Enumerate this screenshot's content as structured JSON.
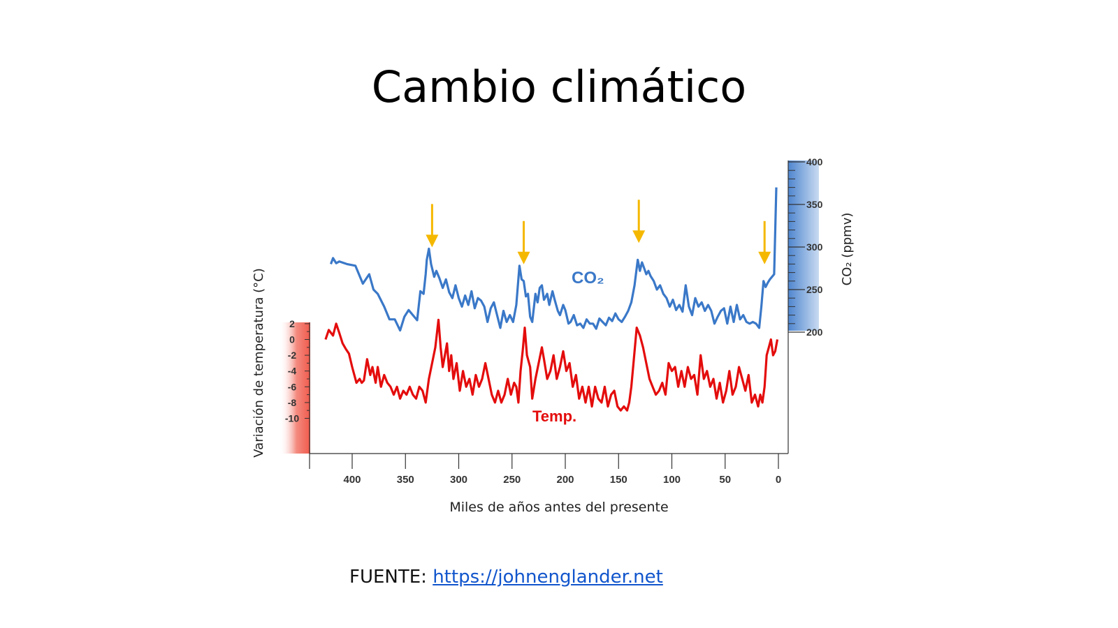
{
  "slide": {
    "title": "Cambio climático",
    "source_label": "FUENTE:",
    "source_link": "https://johnenglander.net"
  },
  "colors": {
    "co2": "#3a78c8",
    "temp": "#e40c0c",
    "arrow": "#f5b800",
    "co2_axis_bar": "#7aa6dc",
    "temp_axis_bar": "#f26a5e"
  },
  "chart_data": {
    "type": "line",
    "xlabel": "Miles de años antes del presente",
    "ylabel_left": "Variación de temperatura (°C)",
    "ylabel_right": "CO₂ (ppmv)",
    "x_ticks": [
      400,
      350,
      300,
      250,
      200,
      150,
      100,
      50,
      0
    ],
    "xlim": [
      440,
      0
    ],
    "y_left_ticks": [
      2,
      0,
      -2,
      -4,
      -6,
      -8,
      -10
    ],
    "y_left_tick_labels": [
      "2",
      "0",
      "-2",
      "-4",
      "-6",
      "-8",
      "-10"
    ],
    "y_right_ticks": [
      400,
      350,
      300,
      250,
      200
    ],
    "series": [
      {
        "name": "CO2",
        "axis": "right",
        "x": [
          420,
          418,
          415,
          412,
          405,
          397,
          390,
          384,
          380,
          376,
          370,
          365,
          360,
          355,
          351,
          347,
          343,
          339,
          336,
          333,
          331,
          330,
          328,
          326,
          323,
          321,
          318,
          315,
          312,
          309,
          306,
          303,
          300,
          297,
          294,
          291,
          288,
          285,
          282,
          279,
          276,
          273,
          270,
          267,
          264,
          261,
          258,
          255,
          252,
          249,
          246,
          243,
          241,
          239,
          237,
          235,
          233,
          231,
          228,
          226,
          224,
          222,
          220,
          217,
          215,
          212,
          210,
          207,
          205,
          202,
          200,
          197,
          195,
          192,
          189,
          186,
          183,
          180,
          177,
          174,
          171,
          168,
          165,
          162,
          159,
          156,
          153,
          150,
          147,
          144,
          141,
          138,
          135,
          132,
          130,
          128,
          126,
          124,
          122,
          120,
          117,
          114,
          111,
          108,
          105,
          102,
          99,
          96,
          93,
          90,
          87,
          84,
          81,
          78,
          75,
          72,
          69,
          66,
          63,
          60,
          57,
          54,
          51,
          48,
          45,
          42,
          39,
          36,
          33,
          30,
          27,
          24,
          21,
          18,
          16,
          14,
          12,
          10,
          8,
          6,
          4,
          2
        ],
        "values": [
          280,
          287,
          281,
          283,
          280,
          278,
          257,
          268,
          250,
          245,
          230,
          215,
          215,
          202,
          218,
          226,
          220,
          214,
          248,
          245,
          268,
          285,
          298,
          280,
          265,
          272,
          263,
          252,
          262,
          247,
          240,
          255,
          240,
          230,
          243,
          232,
          248,
          228,
          240,
          237,
          230,
          212,
          228,
          235,
          220,
          205,
          225,
          212,
          220,
          212,
          232,
          278,
          262,
          260,
          242,
          245,
          218,
          212,
          245,
          235,
          252,
          255,
          238,
          245,
          232,
          248,
          238,
          225,
          220,
          232,
          226,
          210,
          212,
          220,
          208,
          210,
          205,
          215,
          210,
          210,
          204,
          216,
          212,
          208,
          217,
          213,
          222,
          215,
          212,
          218,
          225,
          235,
          255,
          285,
          272,
          282,
          275,
          268,
          272,
          266,
          260,
          250,
          255,
          245,
          240,
          230,
          238,
          226,
          232,
          224,
          255,
          230,
          220,
          240,
          230,
          235,
          225,
          232,
          225,
          210,
          218,
          225,
          228,
          210,
          230,
          212,
          232,
          215,
          220,
          212,
          210,
          212,
          210,
          205,
          230,
          260,
          253,
          258,
          262,
          265,
          268,
          370
        ]
      },
      {
        "name": "Temp.",
        "axis": "left",
        "x": [
          425,
          422,
          418,
          415,
          412,
          409,
          406,
          403,
          400,
          398,
          396,
          393,
          391,
          389,
          386,
          383,
          381,
          378,
          376,
          373,
          370,
          367,
          364,
          361,
          358,
          355,
          352,
          349,
          346,
          343,
          340,
          337,
          334,
          331,
          328,
          325,
          322,
          319,
          317,
          315,
          313,
          311,
          309,
          307,
          305,
          302,
          299,
          296,
          293,
          290,
          287,
          284,
          281,
          278,
          275,
          272,
          269,
          266,
          263,
          260,
          257,
          254,
          251,
          248,
          246,
          244,
          242,
          240,
          238,
          236,
          233,
          231,
          228,
          225,
          222,
          220,
          217,
          214,
          211,
          208,
          205,
          202,
          199,
          196,
          193,
          190,
          187,
          184,
          181,
          178,
          175,
          172,
          169,
          166,
          163,
          160,
          157,
          154,
          151,
          148,
          145,
          142,
          140,
          138,
          136,
          133,
          130,
          127,
          124,
          121,
          118,
          115,
          112,
          109,
          106,
          103,
          100,
          97,
          94,
          91,
          88,
          85,
          82,
          79,
          76,
          73,
          70,
          67,
          64,
          61,
          58,
          55,
          52,
          49,
          46,
          43,
          40,
          37,
          34,
          31,
          28,
          25,
          22,
          19,
          17,
          15,
          13,
          11,
          9,
          7,
          5,
          3,
          1
        ],
        "values": [
          0,
          1.2,
          0.5,
          2,
          0.8,
          -0.5,
          -1.2,
          -1.8,
          -3.5,
          -4.5,
          -5.5,
          -5,
          -5.5,
          -5.2,
          -2.5,
          -4.5,
          -3.5,
          -5.5,
          -3.5,
          -6,
          -4.5,
          -5.5,
          -6,
          -7,
          -6,
          -7.5,
          -6.5,
          -7,
          -6,
          -7,
          -7.5,
          -6,
          -6.5,
          -8,
          -5,
          -3,
          -1,
          2.5,
          -1,
          -3.5,
          -2,
          -0.5,
          -4,
          -2,
          -5,
          -3,
          -6.5,
          -4,
          -6,
          -5,
          -7,
          -4.5,
          -6,
          -5,
          -3,
          -5,
          -7,
          -8,
          -6.5,
          -8,
          -7,
          -5,
          -7,
          -5.5,
          -6,
          -8,
          -4,
          -1.5,
          1.5,
          -2,
          -3.5,
          -7.5,
          -5,
          -3,
          -1,
          -2.5,
          -5,
          -4,
          -2,
          -5,
          -3.5,
          -1.5,
          -4,
          -3,
          -6,
          -4.5,
          -7.5,
          -6,
          -8,
          -6,
          -8.5,
          -6,
          -7.5,
          -8,
          -6,
          -8.5,
          -7,
          -6.5,
          -8.5,
          -9,
          -8.5,
          -9,
          -8,
          -6,
          -3,
          1.5,
          0.5,
          -1,
          -3,
          -5,
          -6,
          -7,
          -6.5,
          -5.5,
          -7,
          -3,
          -4,
          -3.5,
          -6,
          -4,
          -6,
          -3.5,
          -5,
          -4.5,
          -7,
          -2,
          -5,
          -4,
          -6,
          -5,
          -7.5,
          -5.5,
          -8,
          -6.5,
          -4,
          -7,
          -6,
          -3.5,
          -5,
          -6.5,
          -4.5,
          -8,
          -7,
          -8.5,
          -7,
          -8,
          -6,
          -2,
          -1,
          0,
          -2,
          -1.5,
          0
        ]
      }
    ],
    "annotations": [
      {
        "text": "CO₂",
        "series": "CO2"
      },
      {
        "text": "Temp.",
        "series": "Temp."
      }
    ],
    "arrows_at_x": [
      325,
      239,
      131,
      13
    ],
    "grid": false
  }
}
